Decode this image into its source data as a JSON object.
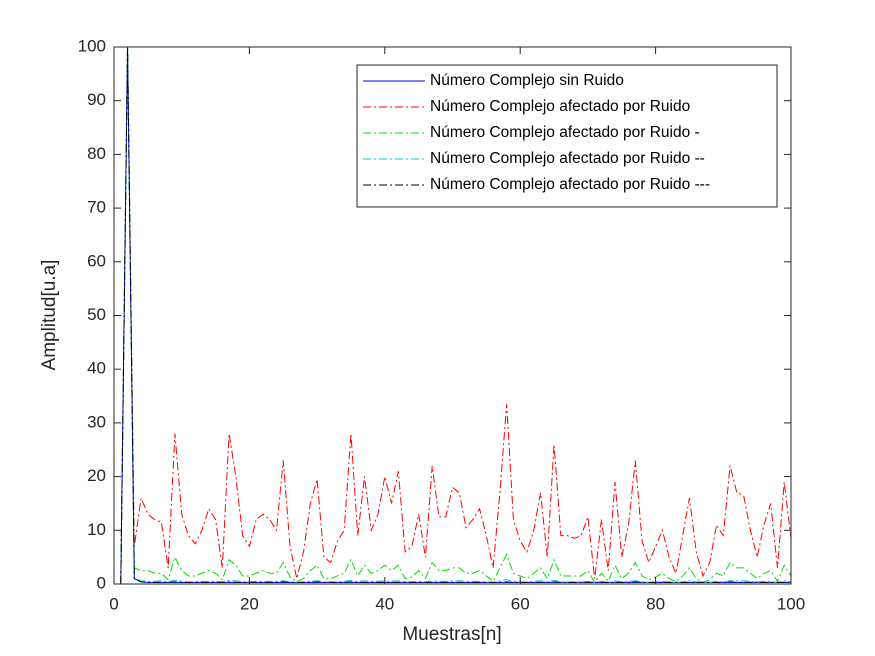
{
  "chart_data": {
    "type": "line",
    "xlabel": "Muestras[n]",
    "ylabel": "Amplitud[u.a]",
    "xlim": [
      0,
      100
    ],
    "ylim": [
      0,
      100
    ],
    "xticks": [
      0,
      20,
      40,
      60,
      80,
      100
    ],
    "yticks": [
      0,
      10,
      20,
      30,
      40,
      50,
      60,
      70,
      80,
      90,
      100
    ],
    "grid": false,
    "legend": "top-right",
    "x": [
      1,
      2,
      3,
      4,
      5,
      6,
      7,
      8,
      9,
      10,
      11,
      12,
      13,
      14,
      15,
      16,
      17,
      18,
      19,
      20,
      21,
      22,
      23,
      24,
      25,
      26,
      27,
      28,
      29,
      30,
      31,
      32,
      33,
      34,
      35,
      36,
      37,
      38,
      39,
      40,
      41,
      42,
      43,
      44,
      45,
      46,
      47,
      48,
      49,
      50,
      51,
      52,
      53,
      54,
      55,
      56,
      57,
      58,
      59,
      60,
      61,
      62,
      63,
      64,
      65,
      66,
      67,
      68,
      69,
      70,
      71,
      72,
      73,
      74,
      75,
      76,
      77,
      78,
      79,
      80,
      81,
      82,
      83,
      84,
      85,
      86,
      87,
      88,
      89,
      90,
      91,
      92,
      93,
      94,
      95,
      96,
      97,
      98,
      99,
      100
    ],
    "series": [
      {
        "name": "Número Complejo sin Ruido",
        "color": "#0000ff",
        "dash": "solid",
        "values": [
          0,
          100,
          1,
          0.4,
          0.3,
          0.3,
          0.3,
          0.3,
          0.3,
          0.3,
          0.3,
          0.3,
          0.3,
          0.3,
          0.3,
          0.3,
          0.3,
          0.3,
          0.3,
          0.3,
          0.3,
          0.3,
          0.3,
          0.3,
          0.3,
          0.3,
          0.3,
          0.3,
          0.3,
          0.3,
          0.3,
          0.3,
          0.3,
          0.3,
          0.3,
          0.3,
          0.3,
          0.3,
          0.3,
          0.3,
          0.3,
          0.3,
          0.3,
          0.3,
          0.3,
          0.3,
          0.3,
          0.3,
          0.3,
          0.3,
          0.3,
          0.3,
          0.3,
          0.3,
          0.3,
          0.3,
          0.3,
          0.3,
          0.3,
          0.3,
          0.3,
          0.3,
          0.3,
          0.3,
          0.3,
          0.3,
          0.3,
          0.3,
          0.3,
          0.3,
          0.3,
          0.3,
          0.3,
          0.3,
          0.3,
          0.3,
          0.3,
          0.3,
          0.3,
          0.3,
          0.3,
          0.3,
          0.3,
          0.3,
          0.3,
          0.3,
          0.3,
          0.3,
          0.3,
          0.3,
          0.3,
          0.3,
          0.3,
          0.3,
          0.3,
          0.3,
          0.3,
          0.3,
          0.3,
          0.3
        ]
      },
      {
        "name": "Número Complejo afectado por Ruido",
        "color": "#ff0000",
        "dash": "dash-dot",
        "values": [
          0,
          100,
          7,
          16,
          13,
          12,
          11.5,
          3,
          28,
          13,
          9,
          7.5,
          10,
          14,
          12,
          3,
          28,
          20,
          9,
          7,
          12,
          13,
          12,
          10,
          23,
          7,
          1,
          6,
          15,
          19.5,
          5,
          4,
          8,
          10,
          28,
          9,
          20,
          10,
          13,
          20,
          15,
          21,
          6,
          7,
          13,
          5,
          22,
          12.5,
          12.5,
          18,
          17,
          10.5,
          12,
          14,
          9,
          3,
          17,
          33.5,
          12,
          8,
          6,
          10,
          17,
          5,
          26,
          9,
          9,
          8.5,
          9,
          12.5,
          1,
          12,
          2.5,
          19,
          5,
          11,
          23,
          8,
          4,
          7,
          10,
          5,
          2,
          9,
          16,
          6,
          1.5,
          4,
          11,
          9,
          22,
          17,
          16.5,
          10,
          5,
          11,
          15,
          3,
          19,
          8.5
        ]
      },
      {
        "name": "Número Complejo afectado por Ruido -",
        "color": "#00dd00",
        "dash": "dash-dot",
        "values": [
          0,
          100,
          3,
          2.5,
          2.5,
          2,
          2,
          0.8,
          5,
          2.5,
          1.5,
          1.5,
          2,
          2.5,
          2,
          0.8,
          4.5,
          3.5,
          1.5,
          1.5,
          2,
          2.5,
          2,
          2,
          4,
          1.3,
          0.5,
          1,
          2.5,
          3.5,
          1,
          1,
          1.5,
          2,
          4.5,
          1.5,
          3.5,
          2,
          2.5,
          3.5,
          2.5,
          3.5,
          1,
          1.3,
          2.5,
          1,
          4,
          2.5,
          2.5,
          3,
          3,
          2,
          2,
          2.5,
          1.5,
          0.5,
          3,
          5.5,
          2,
          1.5,
          1,
          2,
          3,
          1,
          4.5,
          1.5,
          1.5,
          1.5,
          1.5,
          2.5,
          0.3,
          2,
          0.5,
          3.5,
          1,
          2,
          4,
          1.5,
          0.8,
          1.3,
          2,
          1,
          0.5,
          1.5,
          3,
          1,
          0.3,
          0.8,
          2,
          1.5,
          4,
          3,
          3,
          2,
          1,
          2,
          2.5,
          0.5,
          3.5,
          1.5
        ]
      },
      {
        "name": "Número Complejo afectado por Ruido --",
        "color": "#00cccc",
        "dash": "dash-dot",
        "values": [
          0,
          100,
          1,
          0.6,
          0.5,
          0.5,
          0.6,
          0.4,
          0.7,
          0.5,
          0.4,
          0.4,
          0.5,
          0.5,
          0.5,
          0.4,
          0.7,
          0.6,
          0.4,
          0.4,
          0.5,
          0.5,
          0.5,
          0.5,
          0.6,
          0.4,
          0.3,
          0.4,
          0.5,
          0.6,
          0.4,
          0.4,
          0.4,
          0.5,
          0.7,
          0.4,
          0.6,
          0.5,
          0.5,
          0.6,
          0.5,
          0.6,
          0.4,
          0.4,
          0.5,
          0.4,
          0.6,
          0.5,
          0.5,
          0.6,
          0.6,
          0.5,
          0.5,
          0.5,
          0.4,
          0.3,
          0.6,
          0.8,
          0.5,
          0.4,
          0.4,
          0.5,
          0.6,
          0.4,
          0.7,
          0.4,
          0.4,
          0.4,
          0.4,
          0.5,
          0.3,
          0.5,
          0.3,
          0.6,
          0.4,
          0.5,
          0.6,
          0.4,
          0.3,
          0.4,
          0.5,
          0.4,
          0.3,
          0.4,
          0.6,
          0.4,
          0.3,
          0.3,
          0.5,
          0.4,
          0.6,
          0.6,
          0.6,
          0.5,
          0.4,
          0.5,
          0.5,
          0.3,
          0.6,
          0.4
        ]
      },
      {
        "name": "Número Complejo afectado por Ruido ---",
        "color": "#000000",
        "dash": "dash-dot",
        "values": [
          0,
          100,
          1,
          0.4,
          0.3,
          0.3,
          0.3,
          0.3,
          0.4,
          0.3,
          0.3,
          0.3,
          0.3,
          0.3,
          0.3,
          0.3,
          0.4,
          0.3,
          0.3,
          0.3,
          0.3,
          0.3,
          0.3,
          0.3,
          0.4,
          0.3,
          0.3,
          0.3,
          0.3,
          0.4,
          0.3,
          0.3,
          0.3,
          0.3,
          0.4,
          0.3,
          0.3,
          0.3,
          0.3,
          0.3,
          0.3,
          0.3,
          0.3,
          0.3,
          0.3,
          0.3,
          0.3,
          0.3,
          0.3,
          0.3,
          0.3,
          0.3,
          0.3,
          0.3,
          0.3,
          0.3,
          0.3,
          0.4,
          0.3,
          0.3,
          0.3,
          0.3,
          0.3,
          0.3,
          0.4,
          0.3,
          0.3,
          0.3,
          0.3,
          0.3,
          0.3,
          0.3,
          0.3,
          0.3,
          0.3,
          0.3,
          0.4,
          0.3,
          0.3,
          0.3,
          0.3,
          0.3,
          0.3,
          0.3,
          0.3,
          0.3,
          0.3,
          0.3,
          0.3,
          0.3,
          0.4,
          0.3,
          0.3,
          0.3,
          0.3,
          0.3,
          0.3,
          0.3,
          0.3,
          0.3
        ]
      }
    ]
  }
}
